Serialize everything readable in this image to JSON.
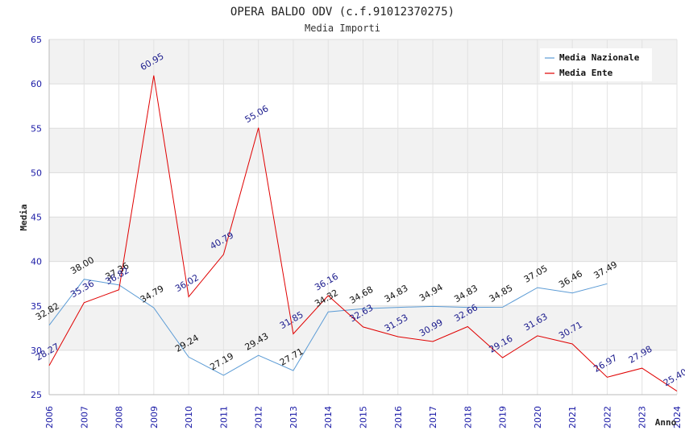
{
  "chart_data": {
    "type": "line",
    "title": "OPERA BALDO ODV (c.f.91012370275)",
    "subtitle": "Media Importi",
    "xlabel": "Anno",
    "ylabel": "Media",
    "ylim": [
      25,
      65
    ],
    "yticks": [
      "25",
      "30",
      "35",
      "40",
      "45",
      "50",
      "55",
      "60",
      "65"
    ],
    "categories": [
      "2006",
      "2007",
      "2008",
      "2009",
      "2010",
      "2011",
      "2012",
      "2013",
      "2014",
      "2015",
      "2016",
      "2017",
      "2018",
      "2019",
      "2020",
      "2021",
      "2022",
      "2023",
      "2024"
    ],
    "legend_position": "top-right",
    "series": [
      {
        "name": "Media Nazionale",
        "color": "#5b9bd5",
        "values": [
          32.82,
          38.0,
          37.36,
          34.79,
          29.24,
          27.19,
          29.43,
          27.71,
          34.32,
          34.68,
          34.83,
          34.94,
          34.83,
          34.85,
          37.05,
          36.46,
          37.49,
          null,
          null
        ],
        "labels": [
          "32.82",
          "38.00",
          "37.36",
          "34.79",
          "29.24",
          "27.19",
          "29.43",
          "27.71",
          "34.32",
          "34.68",
          "34.83",
          "34.94",
          "34.83",
          "34.85",
          "37.05",
          "36.46",
          "37.49",
          null,
          null
        ]
      },
      {
        "name": "Media Ente",
        "color": "#e00000",
        "values": [
          28.27,
          35.36,
          36.82,
          60.95,
          36.02,
          40.79,
          55.06,
          31.85,
          36.16,
          32.63,
          31.53,
          30.99,
          32.66,
          29.16,
          31.63,
          30.71,
          26.97,
          27.98,
          25.4
        ],
        "labels": [
          "28.27",
          "35.36",
          "36.82",
          "60.95",
          "36.02",
          "40.79",
          "55.06",
          "31.85",
          "36.16",
          "32.63",
          "31.53",
          "30.99",
          "32.66",
          "29.16",
          "31.63",
          "30.71",
          "26.97",
          "27.98",
          "25.40"
        ]
      }
    ]
  }
}
